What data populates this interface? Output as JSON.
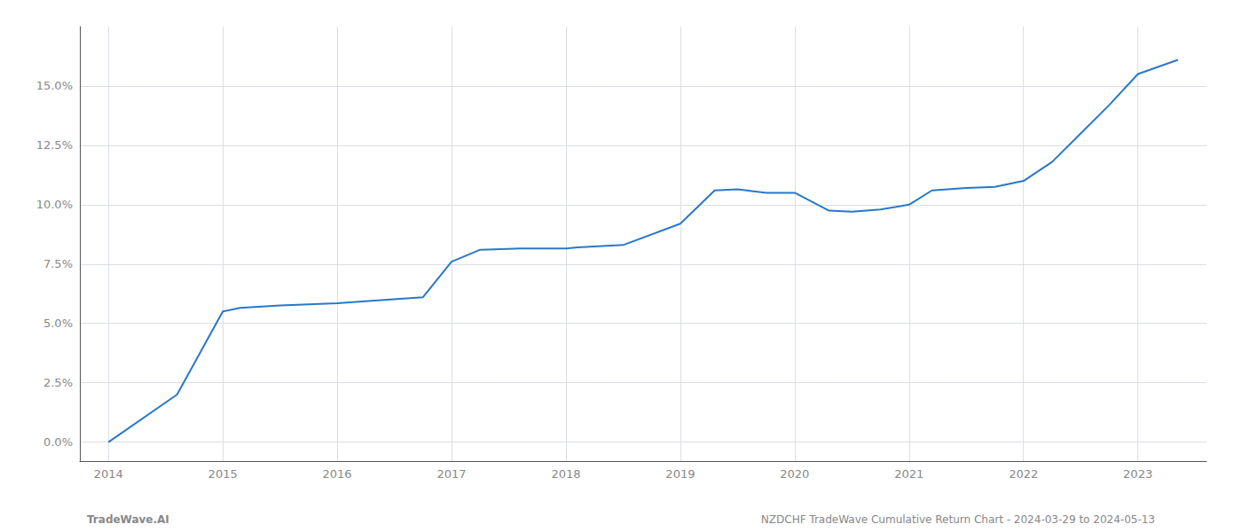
{
  "chart_data": {
    "type": "line",
    "x": [
      2014.0,
      2014.6,
      2015.0,
      2015.15,
      2015.5,
      2016.0,
      2016.3,
      2016.75,
      2017.0,
      2017.25,
      2017.6,
      2018.0,
      2018.1,
      2018.5,
      2019.0,
      2019.3,
      2019.5,
      2019.75,
      2020.0,
      2020.3,
      2020.5,
      2020.75,
      2021.0,
      2021.2,
      2021.5,
      2021.75,
      2022.0,
      2022.25,
      2022.5,
      2022.75,
      2023.0,
      2023.35
    ],
    "values": [
      0.0,
      2.0,
      5.5,
      5.65,
      5.75,
      5.85,
      5.95,
      6.1,
      7.6,
      8.1,
      8.15,
      8.15,
      8.2,
      8.3,
      9.2,
      10.6,
      10.65,
      10.5,
      10.5,
      9.75,
      9.7,
      9.8,
      10.0,
      10.6,
      10.7,
      10.75,
      11.0,
      11.8,
      13.0,
      14.2,
      15.5,
      16.1
    ],
    "color": "#2878c8",
    "xlim": [
      2013.75,
      2023.6
    ],
    "ylim": [
      -0.8,
      17.5
    ],
    "xticks": [
      2014,
      2015,
      2016,
      2017,
      2018,
      2019,
      2020,
      2021,
      2022,
      2023
    ],
    "yticks": [
      {
        "value": 0.0,
        "label": "0.0%"
      },
      {
        "value": 2.5,
        "label": "2.5%"
      },
      {
        "value": 5.0,
        "label": "5.0%"
      },
      {
        "value": 7.5,
        "label": "7.5%"
      },
      {
        "value": 10.0,
        "label": "10.0%"
      },
      {
        "value": 12.5,
        "label": "12.5%"
      },
      {
        "value": 15.0,
        "label": "15.0%"
      }
    ],
    "grid": true,
    "annotations": [
      "TradeWave.AI",
      "NZDCHF TradeWave Cumulative Return Chart - 2024-03-29 to 2024-05-13"
    ]
  }
}
